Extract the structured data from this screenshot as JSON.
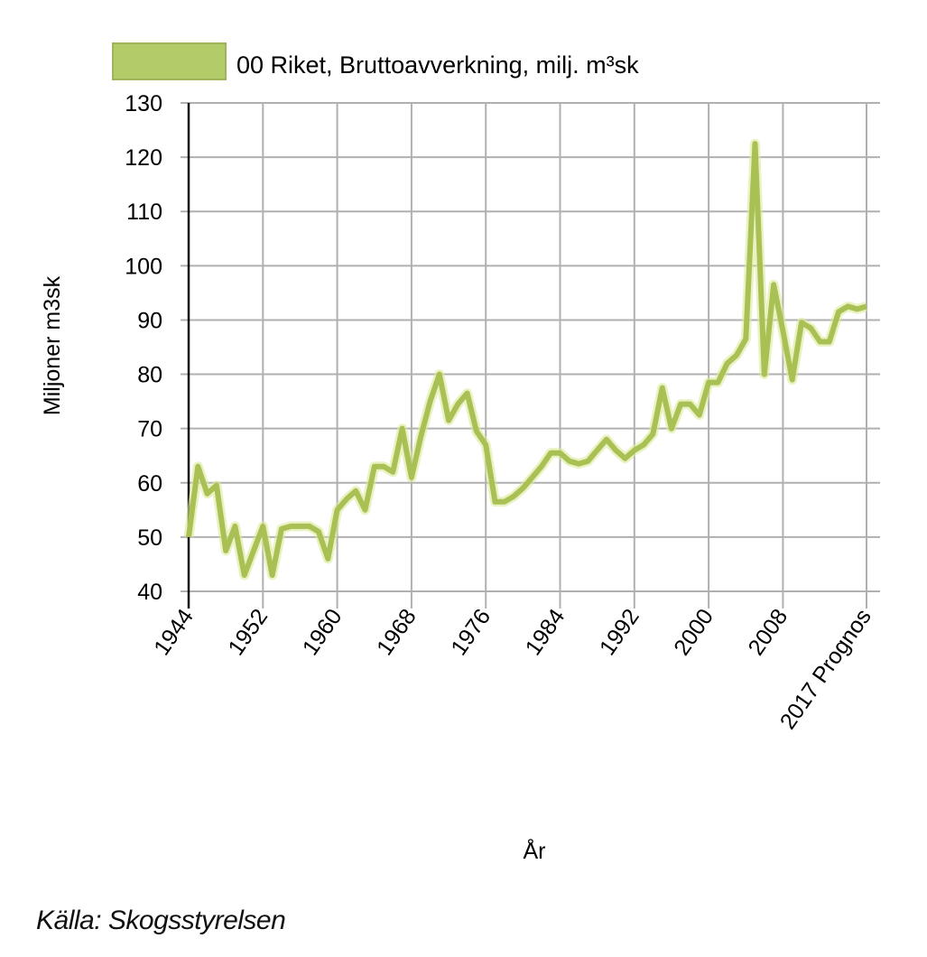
{
  "legend": {
    "label": "00 Riket, Bruttoavverkning, milj. m³sk",
    "swatch_color": "#b3cc6a",
    "swatch_border": "#9fb45a"
  },
  "source_label": "Källa: Skogsstyrelsen",
  "colors": {
    "line": "#a9c055",
    "line_glow": "#dcea9a",
    "grid": "#b0b0b0",
    "axis": "#111111"
  },
  "chart_data": {
    "type": "line",
    "title": "",
    "xlabel": "År",
    "ylabel": "Miljoner m3sk",
    "ylim": [
      40,
      130
    ],
    "yticks": [
      40,
      50,
      60,
      70,
      80,
      90,
      100,
      110,
      120,
      130
    ],
    "xtick_years": [
      1944,
      1952,
      1960,
      1968,
      1976,
      1984,
      1992,
      2000,
      2008,
      2017
    ],
    "xtick_labels": [
      "1944",
      "1952",
      "1960",
      "1968",
      "1976",
      "1984",
      "1992",
      "2000",
      "2008",
      "2017 Prognos"
    ],
    "grid": true,
    "legend_position": "top",
    "series": [
      {
        "name": "00 Riket, Bruttoavverkning, milj. m³sk",
        "x": [
          1944,
          1945,
          1946,
          1947,
          1948,
          1949,
          1950,
          1951,
          1952,
          1953,
          1954,
          1955,
          1956,
          1957,
          1958,
          1959,
          1960,
          1961,
          1962,
          1963,
          1964,
          1965,
          1966,
          1967,
          1968,
          1969,
          1970,
          1971,
          1972,
          1973,
          1974,
          1975,
          1976,
          1977,
          1978,
          1979,
          1980,
          1981,
          1982,
          1983,
          1984,
          1985,
          1986,
          1987,
          1988,
          1989,
          1990,
          1991,
          1992,
          1993,
          1994,
          1995,
          1996,
          1997,
          1998,
          1999,
          2000,
          2001,
          2002,
          2003,
          2004,
          2005,
          2006,
          2007,
          2008,
          2009,
          2010,
          2011,
          2012,
          2013,
          2014,
          2015,
          2016,
          2017
        ],
        "values": [
          50,
          63,
          58,
          59.5,
          47.5,
          52,
          43,
          47.5,
          52,
          43,
          51.5,
          52,
          52,
          52,
          51,
          46,
          55,
          57,
          58.5,
          55,
          63,
          63,
          62,
          70,
          61,
          68.5,
          75,
          80,
          71.5,
          74.5,
          76.5,
          69.5,
          67,
          56.5,
          56.5,
          57.5,
          59,
          61,
          63,
          65.5,
          65.5,
          64,
          63.5,
          64,
          66,
          68,
          66,
          64.5,
          66,
          67,
          69,
          77.5,
          70,
          74.5,
          74.5,
          72.5,
          78.5,
          78.5,
          82,
          83.5,
          86.5,
          122.5,
          80,
          96.5,
          88,
          79,
          89.5,
          88.5,
          86,
          86,
          91.5,
          92.5,
          92,
          92.5
        ]
      }
    ]
  }
}
